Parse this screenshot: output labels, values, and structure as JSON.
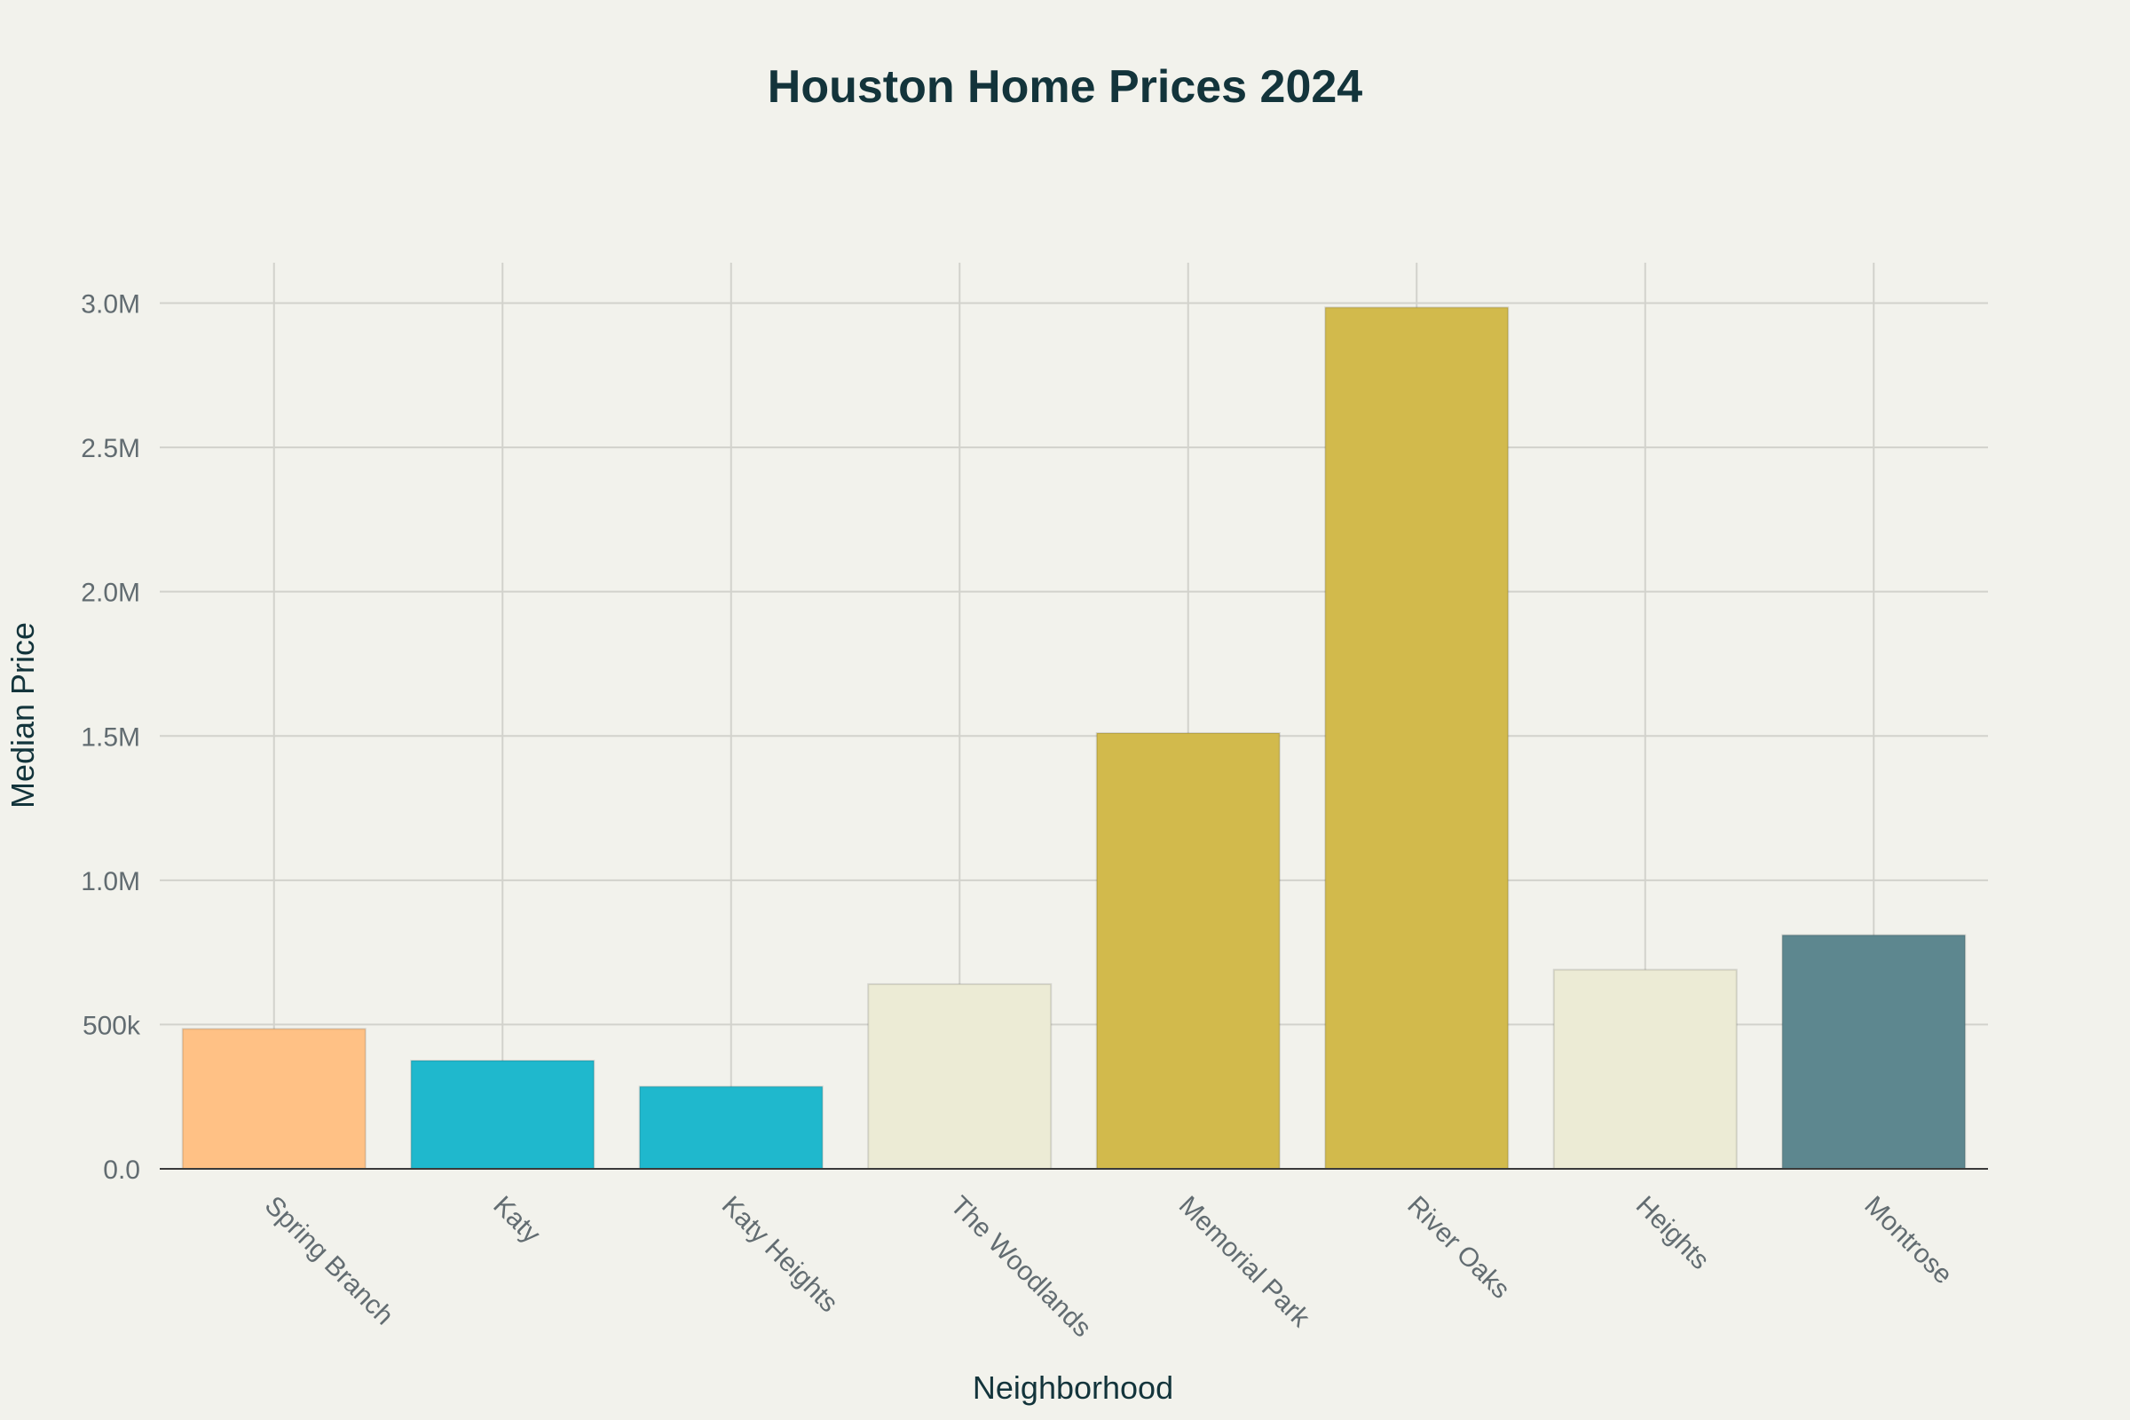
{
  "chart_data": {
    "type": "bar",
    "title": "Houston Home Prices 2024",
    "xlabel": "Neighborhood",
    "ylabel": "Median Price",
    "categories": [
      "Spring Branch",
      "Katy",
      "Katy Heights",
      "The Woodlands",
      "Memorial Park",
      "River Oaks",
      "Heights",
      "Montrose"
    ],
    "values": [
      485000,
      375000,
      285000,
      640000,
      1510000,
      2985000,
      690000,
      810000
    ],
    "colors": [
      "#ffc185",
      "#1fb8cd",
      "#1fb8cd",
      "#ecebd5",
      "#d2ba4c",
      "#d2ba4c",
      "#ecebd5",
      "#5d878f"
    ],
    "ylim": [
      0,
      3140000
    ],
    "yticks": [
      0,
      500000,
      1000000,
      1500000,
      2000000,
      2500000,
      3000000
    ],
    "ytick_labels": [
      "0.0",
      "500k",
      "1.0M",
      "1.5M",
      "2.0M",
      "2.5M",
      "3.0M"
    ],
    "grid": true,
    "legend": false
  }
}
